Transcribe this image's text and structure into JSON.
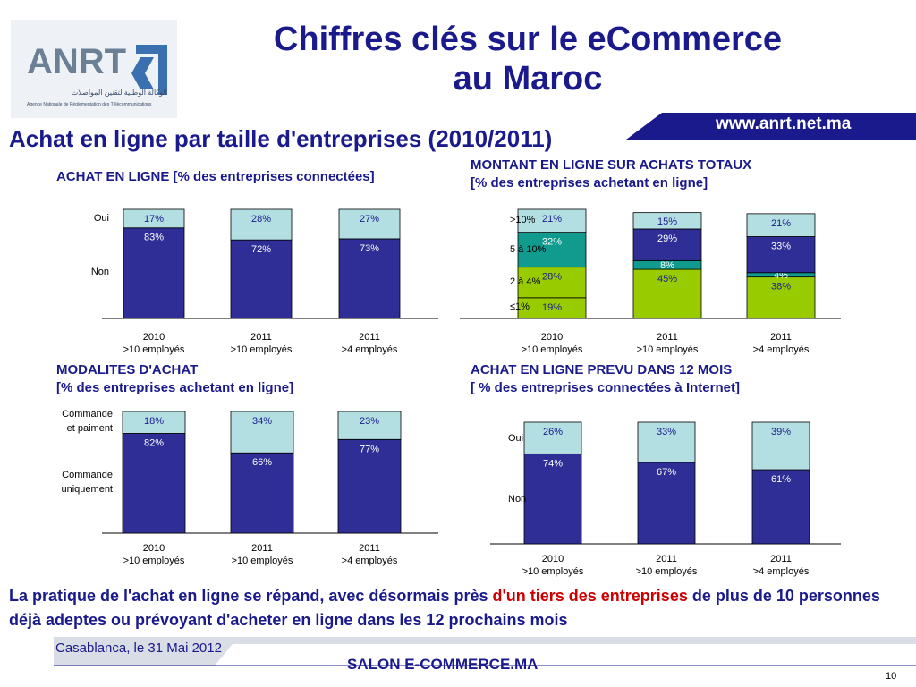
{
  "header": {
    "logo_text": "ANRT",
    "logo_arabic": "الوكالة الوطنية لتقنين المواصلات",
    "logo_subtitle": "Agence Nationale de Réglementation des Télécommunications",
    "title_line1": "Chiffres clés sur  le eCommerce",
    "title_line2": "au Maroc",
    "url": "www.anrt.net.ma",
    "subtitle": "Achat en ligne par taille d'entreprises (2010/2011)"
  },
  "colors": {
    "navy": "#1a1a8c",
    "dark_bar": "#2e2e96",
    "light_bar": "#b3dfe3",
    "teal_bar": "#119a8e",
    "green_bar": "#99cc00",
    "highlight": "#cc0000"
  },
  "chart_data": [
    {
      "type": "bar",
      "stacked": true,
      "title": "ACHAT EN LIGNE [% des entreprises connectées]",
      "categories": [
        [
          "2010",
          ">10 employés"
        ],
        [
          "2011",
          ">10 employés"
        ],
        [
          "2011",
          ">4 employés"
        ]
      ],
      "series": [
        {
          "name": "Non",
          "values": [
            83,
            72,
            73
          ],
          "labels": [
            "83%",
            "72%",
            "73%"
          ],
          "color": "#2e2e96"
        },
        {
          "name": "Oui",
          "values": [
            17,
            28,
            27
          ],
          "labels": [
            "17%",
            "28%",
            "27%"
          ],
          "color": "#b3dfe3"
        }
      ],
      "ylim": [
        0,
        100
      ]
    },
    {
      "type": "bar",
      "stacked": true,
      "title": "MONTANT EN LIGNE SUR ACHATS TOTAUX",
      "title_line2": "[% des entreprises achetant en ligne]",
      "categories": [
        [
          "2010",
          ">10 employés"
        ],
        [
          "2011",
          ">10 employés"
        ],
        [
          "2011",
          ">4 employés"
        ]
      ],
      "series": [
        {
          "name": "≤1%",
          "values": [
            19,
            0,
            0
          ],
          "labels": [
            "19%",
            "",
            ""
          ],
          "color": "#99cc00"
        },
        {
          "name": "2 à 4%",
          "values": [
            28,
            45,
            38
          ],
          "labels": [
            "28%",
            "45%",
            "38%"
          ],
          "color": "#99cc00"
        },
        {
          "name": "5 à 10%",
          "values": [
            32,
            8,
            4
          ],
          "labels": [
            "32%",
            "8%",
            "4%"
          ],
          "color": "#119a8e"
        },
        {
          "name": "",
          "values": [
            0,
            29,
            33
          ],
          "labels": [
            "",
            "29%",
            "33%"
          ],
          "color": "#2e2e96"
        },
        {
          "name": ">10%",
          "values": [
            21,
            15,
            21
          ],
          "labels": [
            "21%",
            "15%",
            "21%"
          ],
          "color": "#b3dfe3"
        }
      ],
      "ylim": [
        0,
        100
      ]
    },
    {
      "type": "bar",
      "stacked": true,
      "title": "MODALITES D'ACHAT",
      "title_line2": "[% des entreprises achetant en ligne]",
      "categories": [
        [
          "2010",
          ">10 employés"
        ],
        [
          "2011",
          ">10 employés"
        ],
        [
          "2011",
          ">4 employés"
        ]
      ],
      "series": [
        {
          "name": "Commande uniquement",
          "values": [
            82,
            66,
            77
          ],
          "labels": [
            "82%",
            "66%",
            "77%"
          ],
          "color": "#2e2e96"
        },
        {
          "name": "Commande et paiment",
          "values": [
            18,
            34,
            23
          ],
          "labels": [
            "18%",
            "34%",
            "23%"
          ],
          "color": "#b3dfe3"
        }
      ],
      "ylim": [
        0,
        100
      ]
    },
    {
      "type": "bar",
      "stacked": true,
      "title": "ACHAT EN LIGNE PREVU DANS 12 MOIS",
      "title_line2": "[ % des entreprises connectées à Internet]",
      "categories": [
        [
          "2010",
          ">10 employés"
        ],
        [
          "2011",
          ">10 employés"
        ],
        [
          "2011",
          ">4 employés"
        ]
      ],
      "series": [
        {
          "name": "Non",
          "values": [
            74,
            67,
            61
          ],
          "labels": [
            "74%",
            "67%",
            "61%"
          ],
          "color": "#2e2e96"
        },
        {
          "name": "Oui",
          "values": [
            26,
            33,
            39
          ],
          "labels": [
            "26%",
            "33%",
            "39%"
          ],
          "color": "#b3dfe3"
        }
      ],
      "ylim": [
        0,
        100
      ]
    }
  ],
  "conclusion": {
    "before": "La pratique de l'achat en ligne se répand, avec désormais près ",
    "highlight": "d'un tiers des entreprises",
    "after": " de plus de 10 personnes déjà adeptes ou prévoyant d'acheter en ligne dans les 12 prochains mois"
  },
  "footer": {
    "date": "Casablanca, le 31 Mai 2012",
    "event": "SALON E-COMMERCE.MA",
    "page": "10"
  }
}
